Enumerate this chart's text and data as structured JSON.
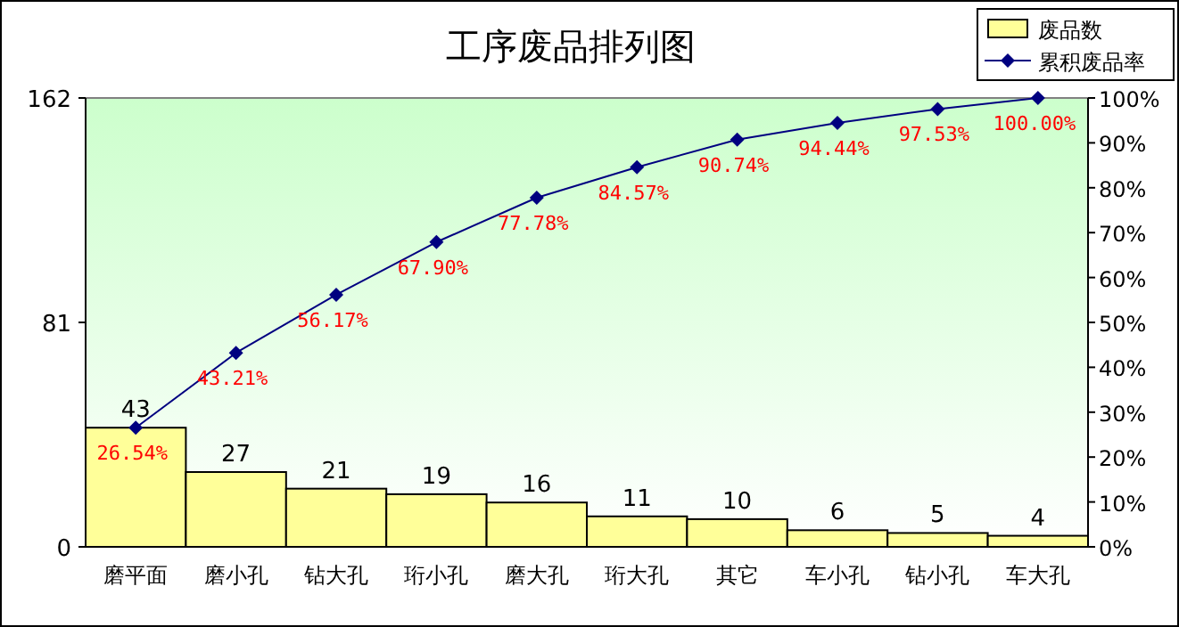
{
  "chart_data": {
    "type": "bar",
    "title": "工序废品排列图",
    "categories": [
      "磨平面",
      "磨小孔",
      "钻大孔",
      "珩小孔",
      "磨大孔",
      "珩大孔",
      "其它",
      "车小孔",
      "钻小孔",
      "车大孔"
    ],
    "series": [
      {
        "name": "废品数",
        "color": "#ffff99",
        "values": [
          43,
          27,
          21,
          19,
          16,
          11,
          10,
          6,
          5,
          4
        ],
        "value_labels": [
          "43",
          "27",
          "21",
          "19",
          "16",
          "11",
          "10",
          "6",
          "5",
          "4"
        ]
      },
      {
        "name": "累积废品率",
        "type": "line",
        "axis": "y2",
        "color": "#000080",
        "values": [
          26.54,
          43.21,
          56.17,
          67.9,
          77.78,
          84.57,
          90.74,
          94.44,
          97.53,
          100.0
        ],
        "value_labels": [
          "26.54%",
          "43.21%",
          "56.17%",
          "67.90%",
          "77.78%",
          "84.57%",
          "90.74%",
          "94.44%",
          "97.53%",
          "100.00%"
        ]
      }
    ],
    "ylim": [
      0,
      162
    ],
    "yticks": [
      0,
      81,
      162
    ],
    "y2lim": [
      0,
      100
    ],
    "y2ticks": [
      {
        "value": 0,
        "label": "0%"
      },
      {
        "value": 10,
        "label": "10%"
      },
      {
        "value": 20,
        "label": "20%"
      },
      {
        "value": 30,
        "label": "30%"
      },
      {
        "value": 40,
        "label": "40%"
      },
      {
        "value": 50,
        "label": "50%"
      },
      {
        "value": 60,
        "label": "60%"
      },
      {
        "value": 70,
        "label": "70%"
      },
      {
        "value": 80,
        "label": "80%"
      },
      {
        "value": 90,
        "label": "90%"
      },
      {
        "value": 100,
        "label": "100%"
      }
    ],
    "legend": "top right",
    "marker": "diamond"
  }
}
